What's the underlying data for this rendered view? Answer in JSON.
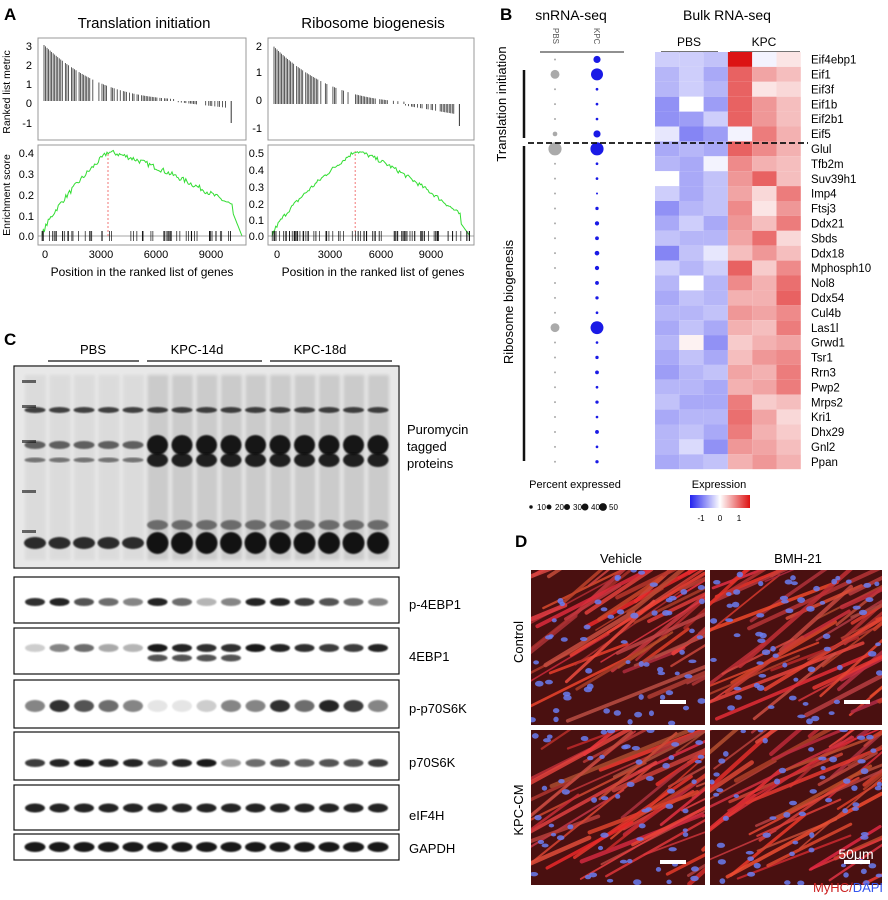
{
  "panels": {
    "A": "A",
    "B": "B",
    "C": "C",
    "D": "D"
  },
  "panelA": {
    "plot1_title": "Translation initiation",
    "plot2_title": "Ribosome biogenesis",
    "ylabel_top": "Ranked list metric",
    "ylabel_bottom": "Enrichment score",
    "xlabel": "Position in the ranked list of genes",
    "plot1": {
      "metric_ticks": [
        "3",
        "2",
        "1",
        "0",
        "-1"
      ],
      "es_ticks": [
        "0.4",
        "0.3",
        "0.2",
        "0.1",
        "0.0"
      ],
      "x_ticks": [
        "0",
        "3000",
        "6000",
        "9000"
      ]
    },
    "plot2": {
      "metric_ticks": [
        "2",
        "1",
        "0",
        "-1"
      ],
      "es_ticks": [
        "0.5",
        "0.4",
        "0.3",
        "0.2",
        "0.1",
        "0.0"
      ],
      "x_ticks": [
        "0",
        "3000",
        "6000",
        "9000"
      ]
    }
  },
  "panelB": {
    "snrna_title": "snRNA-seq",
    "bulk_title": "Bulk RNA-seq",
    "dot_cols": [
      "PBS",
      "KPC"
    ],
    "bulk_groups": [
      "PBS",
      "KPC"
    ],
    "group1": "Translation initiation",
    "group2": "Ribosome biogenesis",
    "genes": [
      "Eif4ebp1",
      "Eif1",
      "Eif3f",
      "Eif1b",
      "Eif2b1",
      "Eif5",
      "Glul",
      "Tfb2m",
      "Suv39h1",
      "Imp4",
      "Ftsj3",
      "Ddx21",
      "Sbds",
      "Ddx18",
      "Mphosph10",
      "Nol8",
      "Ddx54",
      "Cul4b",
      "Las1l",
      "Grwd1",
      "Tsr1",
      "Rrn3",
      "Pwp2",
      "Mrps2",
      "Kri1",
      "Dhx29",
      "Gnl2",
      "Ppan"
    ],
    "heat": [
      [
        -0.4,
        -0.4,
        -0.5,
        1.8,
        -0.1,
        0.2
      ],
      [
        -0.6,
        -0.4,
        -0.7,
        1.2,
        0.7,
        0.5
      ],
      [
        -0.6,
        -0.4,
        -0.6,
        1.2,
        0.2,
        0.3
      ],
      [
        -0.9,
        0.0,
        -0.8,
        1.2,
        0.8,
        0.5
      ],
      [
        -0.9,
        -0.8,
        -0.4,
        1.2,
        0.8,
        0.5
      ],
      [
        -0.2,
        -1.0,
        -0.8,
        -0.1,
        1.0,
        0.6
      ],
      [
        -0.7,
        -0.6,
        -0.7,
        1.2,
        0.9,
        0.6
      ],
      [
        -0.6,
        -0.7,
        -0.1,
        0.9,
        0.6,
        0.5
      ],
      [
        0.0,
        -0.7,
        -0.5,
        0.8,
        1.2,
        0.5
      ],
      [
        -0.4,
        -0.7,
        -0.5,
        0.7,
        0.3,
        1.0
      ],
      [
        -0.9,
        -0.6,
        -0.5,
        0.9,
        0.2,
        0.8
      ],
      [
        -0.7,
        -0.4,
        -0.7,
        0.8,
        0.5,
        1.0
      ],
      [
        -0.5,
        -0.6,
        -0.6,
        0.7,
        1.1,
        0.3
      ],
      [
        -1.0,
        -0.5,
        -0.2,
        0.5,
        0.8,
        0.5
      ],
      [
        -0.4,
        -0.6,
        -0.4,
        1.2,
        0.4,
        0.9
      ],
      [
        -0.6,
        0.0,
        -0.6,
        0.9,
        0.6,
        1.1
      ],
      [
        -0.7,
        -0.5,
        -0.6,
        0.6,
        0.6,
        1.2
      ],
      [
        -0.6,
        -0.6,
        -0.5,
        0.8,
        0.7,
        0.9
      ],
      [
        -0.7,
        -0.5,
        -0.7,
        0.6,
        0.5,
        1.0
      ],
      [
        -0.6,
        0.1,
        -0.9,
        0.4,
        0.6,
        0.7
      ],
      [
        -0.7,
        -0.5,
        -0.7,
        0.5,
        0.8,
        0.9
      ],
      [
        -0.8,
        -0.6,
        -0.5,
        0.7,
        0.6,
        1.0
      ],
      [
        -0.6,
        -0.6,
        -0.7,
        0.6,
        0.7,
        1.0
      ],
      [
        -0.5,
        -0.7,
        -0.7,
        1.0,
        0.4,
        0.5
      ],
      [
        -0.7,
        -0.6,
        -0.6,
        1.1,
        0.7,
        0.3
      ],
      [
        -0.6,
        -0.5,
        -0.7,
        1.0,
        0.6,
        0.4
      ],
      [
        -0.6,
        -0.3,
        -0.9,
        0.8,
        0.7,
        0.5
      ],
      [
        -0.7,
        -0.6,
        -0.5,
        0.6,
        0.8,
        0.6
      ]
    ],
    "dots": [
      [
        1,
        14
      ],
      [
        22,
        40
      ],
      [
        1,
        2
      ],
      [
        1,
        2
      ],
      [
        1,
        2
      ],
      [
        6,
        14
      ],
      [
        48,
        48
      ],
      [
        1,
        2
      ],
      [
        1,
        2
      ],
      [
        1,
        1
      ],
      [
        1,
        3
      ],
      [
        1,
        5
      ],
      [
        1,
        4
      ],
      [
        1,
        6
      ],
      [
        1,
        5
      ],
      [
        1,
        4
      ],
      [
        1,
        3
      ],
      [
        1,
        2
      ],
      [
        22,
        46
      ],
      [
        1,
        2
      ],
      [
        1,
        3
      ],
      [
        1,
        4
      ],
      [
        1,
        2
      ],
      [
        1,
        3
      ],
      [
        1,
        2
      ],
      [
        1,
        4
      ],
      [
        1,
        2
      ],
      [
        1,
        3
      ]
    ],
    "size_legend_title": "Percent expressed",
    "size_legend": [
      10,
      20,
      30,
      40,
      50
    ],
    "color_legend_title": "Expression",
    "color_legend_ticks": [
      "-1",
      "0",
      "1"
    ],
    "colors": {
      "low": "#2222ee",
      "mid": "#ffffff",
      "high": "#dd1111",
      "pbs_dot": "#aaaaaa",
      "kpc_dot": "#1a1ae6"
    }
  },
  "panelC": {
    "groups": [
      "PBS",
      "KPC-14d",
      "KPC-18d"
    ],
    "blots": [
      "Puromycin tagged proteins",
      "p-4EBP1",
      "4EBP1",
      "p-p70S6K",
      "p70S6K",
      "eIF4H",
      "GAPDH"
    ]
  },
  "panelD": {
    "cols": [
      "Vehicle",
      "BMH-21"
    ],
    "rows": [
      "Control",
      "KPC-CM"
    ],
    "scale": "50μm",
    "stain1": "MyHC",
    "stain_sep": "/",
    "stain2": "DAPI",
    "colors": {
      "myhc": "#cc2222",
      "dapi": "#3355ee"
    }
  }
}
